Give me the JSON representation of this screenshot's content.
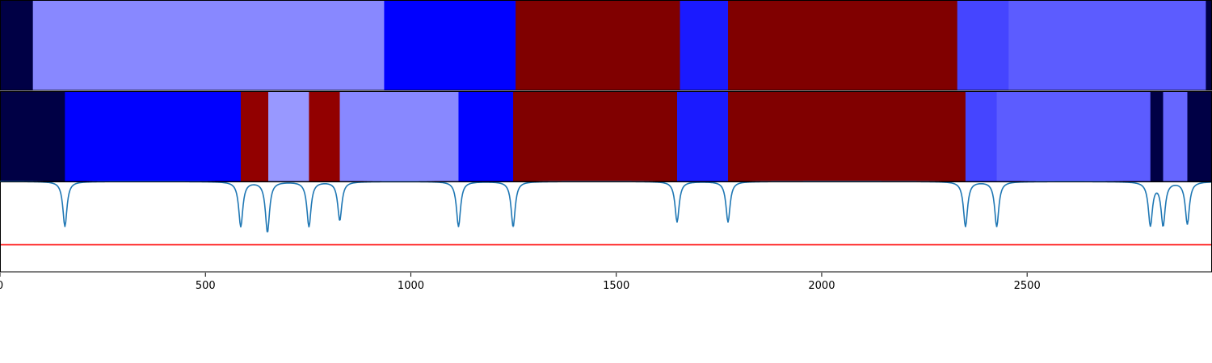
{
  "chart_data": {
    "type": "heatmap",
    "x_range": [
      0,
      2950
    ],
    "x_ticks": [
      {
        "value": 0,
        "label": "0"
      },
      {
        "value": 500,
        "label": "500"
      },
      {
        "value": 1000,
        "label": "1000"
      },
      {
        "value": 1500,
        "label": "1500"
      },
      {
        "value": 2000,
        "label": "2000"
      },
      {
        "value": 2500,
        "label": "2500"
      }
    ],
    "grid": false,
    "legend": "none",
    "panels": [
      {
        "type": "segment-bar",
        "segments": [
          {
            "start": 0,
            "end": 80,
            "color": "#000045"
          },
          {
            "start": 80,
            "end": 935,
            "color": "#8888ff"
          },
          {
            "start": 935,
            "end": 1255,
            "color": "#0000ff"
          },
          {
            "start": 1255,
            "end": 1655,
            "color": "#800000"
          },
          {
            "start": 1655,
            "end": 1772,
            "color": "#1a1aff"
          },
          {
            "start": 1772,
            "end": 2330,
            "color": "#800000"
          },
          {
            "start": 2330,
            "end": 2455,
            "color": "#4545ff"
          },
          {
            "start": 2455,
            "end": 2935,
            "color": "#5c5cff"
          },
          {
            "start": 2935,
            "end": 2950,
            "color": "#000045"
          }
        ]
      },
      {
        "type": "segment-bar",
        "segments": [
          {
            "start": 0,
            "end": 158,
            "color": "#000045"
          },
          {
            "start": 158,
            "end": 586,
            "color": "#0000ff"
          },
          {
            "start": 586,
            "end": 653,
            "color": "#920000"
          },
          {
            "start": 653,
            "end": 752,
            "color": "#9898ff"
          },
          {
            "start": 752,
            "end": 827,
            "color": "#920000"
          },
          {
            "start": 827,
            "end": 1116,
            "color": "#8888ff"
          },
          {
            "start": 1116,
            "end": 1249,
            "color": "#0000ff"
          },
          {
            "start": 1249,
            "end": 1648,
            "color": "#800000"
          },
          {
            "start": 1648,
            "end": 1772,
            "color": "#1a1aff"
          },
          {
            "start": 1772,
            "end": 2350,
            "color": "#800000"
          },
          {
            "start": 2350,
            "end": 2426,
            "color": "#4545ff"
          },
          {
            "start": 2426,
            "end": 2800,
            "color": "#5c5cff"
          },
          {
            "start": 2800,
            "end": 2831,
            "color": "#000045"
          },
          {
            "start": 2831,
            "end": 2890,
            "color": "#6666ff"
          },
          {
            "start": 2890,
            "end": 2950,
            "color": "#000045"
          }
        ]
      },
      {
        "type": "line",
        "series_color": "#1f77b4",
        "threshold": {
          "value": 0.3,
          "color": "#ff0000"
        },
        "y_range": [
          0,
          1
        ],
        "baseline": 1.0,
        "dips": [
          {
            "x": 158,
            "y": 0.5
          },
          {
            "x": 586,
            "y": 0.5
          },
          {
            "x": 651,
            "y": 0.44
          },
          {
            "x": 752,
            "y": 0.5
          },
          {
            "x": 827,
            "y": 0.57
          },
          {
            "x": 1116,
            "y": 0.5
          },
          {
            "x": 1249,
            "y": 0.5
          },
          {
            "x": 1648,
            "y": 0.55
          },
          {
            "x": 1772,
            "y": 0.55
          },
          {
            "x": 2350,
            "y": 0.5
          },
          {
            "x": 2426,
            "y": 0.5
          },
          {
            "x": 2800,
            "y": 0.52
          },
          {
            "x": 2831,
            "y": 0.52
          },
          {
            "x": 2890,
            "y": 0.53
          }
        ]
      }
    ]
  }
}
